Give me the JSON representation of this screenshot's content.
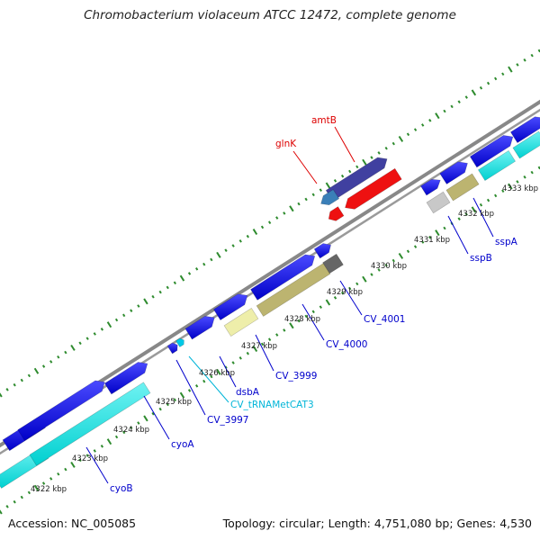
{
  "title": "Chromobacterium violaceum ATCC 12472, complete genome",
  "accession": "Accession: NC_005085",
  "summary": "Topology: circular; Length: 4,751,080 bp; Genes: 4,530",
  "colors": {
    "cds_blue": "#0000e6",
    "cds_cyan": "#00e5e5",
    "trna_cyan": "#00c8e6",
    "red_label": "#dd0000",
    "blue_label": "#0000cc",
    "cyan_label": "#00b5d8",
    "backbone": "#8a8a8a",
    "tick_green": "#2e8b2e"
  },
  "tick_labels": [
    "4322 kbp",
    "4323 kbp",
    "4324 kbp",
    "4325 kbp",
    "4326 kbp",
    "4327 kbp",
    "4328 kbp",
    "4329 kbp",
    "4330 kbp",
    "4331 kbp",
    "4332 kbp",
    "4333 kbp"
  ],
  "gene_labels": [
    {
      "text": "amtB",
      "color": "red"
    },
    {
      "text": "glnK",
      "color": "red"
    },
    {
      "text": "sspA",
      "color": "blue"
    },
    {
      "text": "sspB",
      "color": "blue"
    },
    {
      "text": "CV_4001",
      "color": "blue"
    },
    {
      "text": "CV_4000",
      "color": "blue"
    },
    {
      "text": "CV_3999",
      "color": "blue"
    },
    {
      "text": "dsbA",
      "color": "blue"
    },
    {
      "text": "CV_tRNAMetCAT3",
      "color": "cyan"
    },
    {
      "text": "CV_3997",
      "color": "blue"
    },
    {
      "text": "cyoA",
      "color": "blue"
    },
    {
      "text": "cyoB",
      "color": "blue"
    }
  ]
}
